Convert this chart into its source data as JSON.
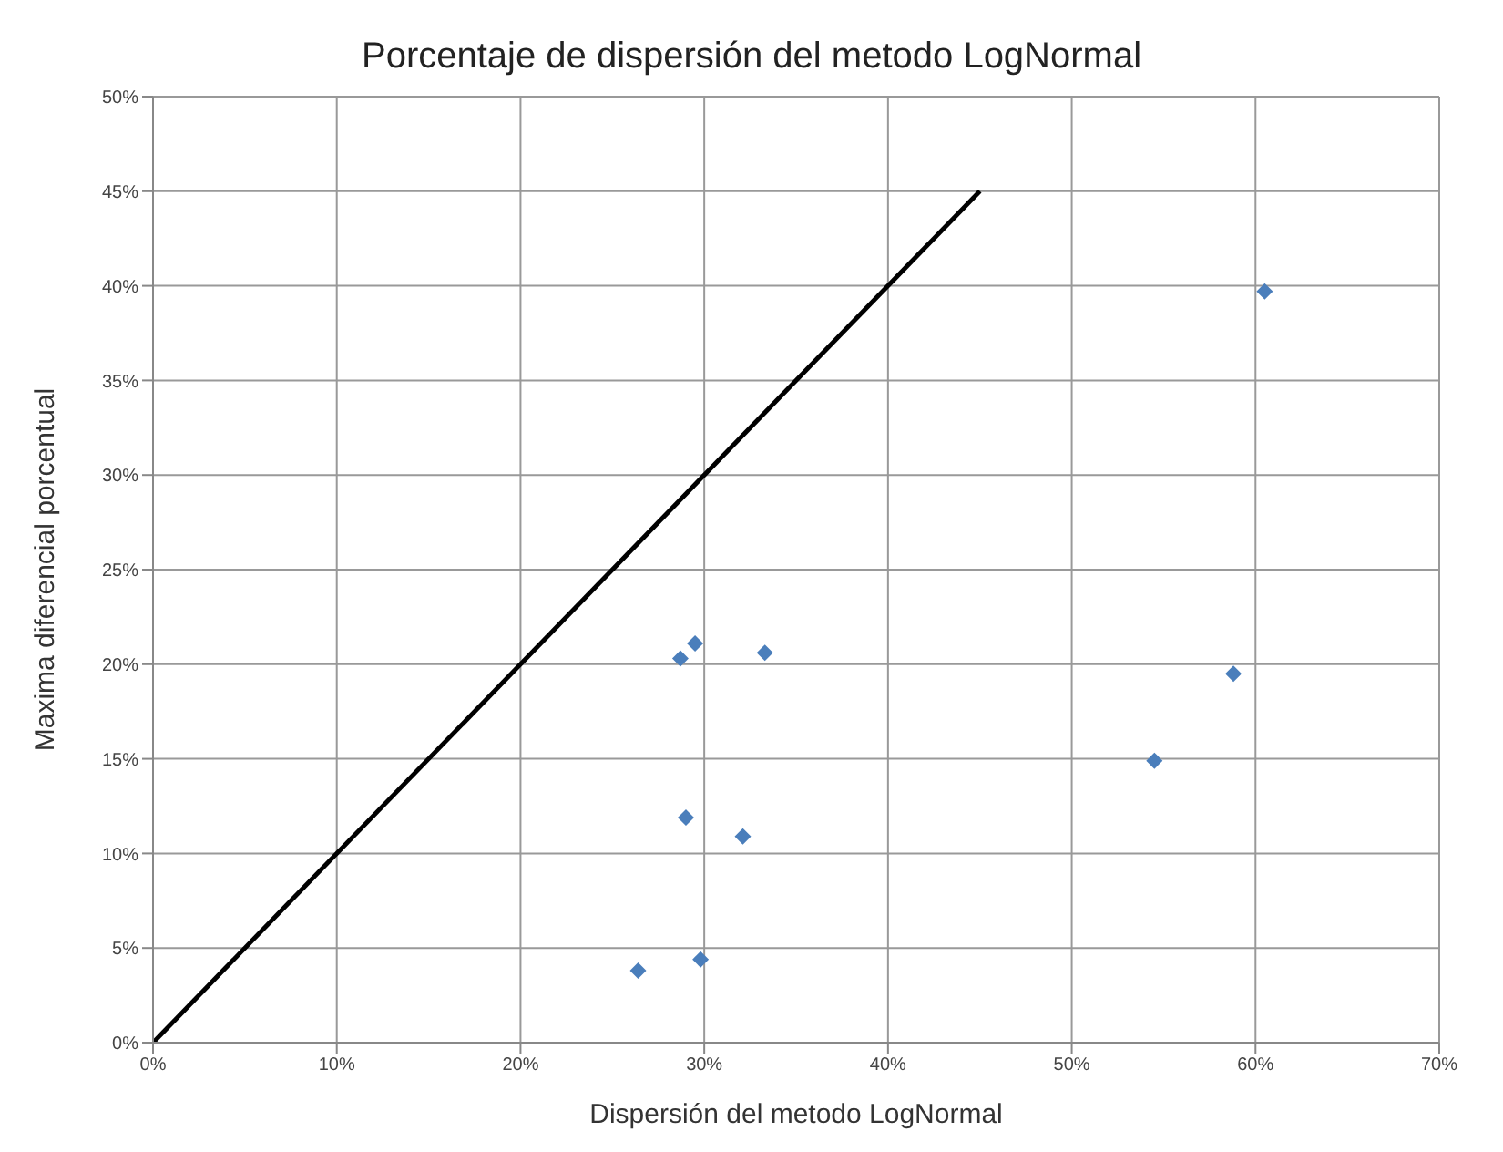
{
  "chart_data": {
    "type": "scatter",
    "title": "Porcentaje de dispersión del metodo LogNormal",
    "xlabel": "Dispersión del metodo LogNormal",
    "ylabel": "Maxima diferencial porcentual",
    "xlim": [
      0,
      70
    ],
    "xticks": [
      {
        "value": 0,
        "label": "0%"
      },
      {
        "value": 10,
        "label": "10%"
      },
      {
        "value": 20,
        "label": "20%"
      },
      {
        "value": 30,
        "label": "30%"
      },
      {
        "value": 40,
        "label": "40%"
      },
      {
        "value": 50,
        "label": "50%"
      },
      {
        "value": 60,
        "label": "60%"
      },
      {
        "value": 70,
        "label": "70%"
      }
    ],
    "ylim": [
      0,
      50
    ],
    "yticks": [
      {
        "value": 0,
        "label": "0%"
      },
      {
        "value": 5,
        "label": "5%"
      },
      {
        "value": 10,
        "label": "10%"
      },
      {
        "value": 15,
        "label": "15%"
      },
      {
        "value": 20,
        "label": "20%"
      },
      {
        "value": 25,
        "label": "25%"
      },
      {
        "value": 30,
        "label": "30%"
      },
      {
        "value": 35,
        "label": "35%"
      },
      {
        "value": 40,
        "label": "40%"
      },
      {
        "value": 45,
        "label": "45%"
      },
      {
        "value": 50,
        "label": "50%"
      }
    ],
    "grid": true,
    "series": [
      {
        "color": "#4a7ebb",
        "marker": "diamond",
        "x": [
          28.7,
          29.5,
          33.3,
          29.0,
          32.1,
          29.8,
          26.4,
          60.5,
          58.8,
          54.5
        ],
        "values": [
          20.3,
          21.1,
          20.6,
          11.9,
          10.9,
          4.4,
          3.8,
          39.7,
          19.5,
          14.9
        ]
      },
      {
        "type": "line",
        "color": "#000000",
        "marker": "none",
        "x": [
          0,
          45
        ],
        "values": [
          0,
          45
        ]
      }
    ]
  }
}
